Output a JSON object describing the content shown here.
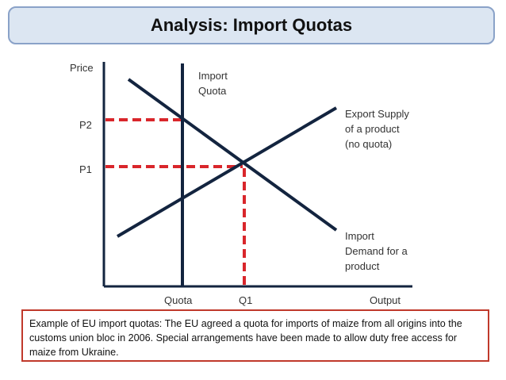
{
  "title": "Analysis: Import Quotas",
  "diagram": {
    "y_axis_label": "Price",
    "x_axis_label": "Output",
    "price_levels": [
      "P2",
      "P1"
    ],
    "quantity_levels": [
      "Quota",
      "Q1"
    ],
    "curve_labels": {
      "quota": [
        "Import",
        "Quota"
      ],
      "supply": [
        "Export Supply",
        "of a product",
        "(no quota)"
      ],
      "demand": [
        "Import",
        "Demand for a",
        "product"
      ]
    },
    "colors": {
      "curves": "#13243f",
      "dashed": "#d9262b",
      "title_bg": "#dce6f2",
      "title_border": "#8aa2c8",
      "note_border": "#c0392b"
    }
  },
  "note": "Example of EU import quotas: The EU agreed a quota for imports of maize from all origins into the customs union bloc in 2006. Special arrangements have been made to allow duty free access for maize from Ukraine."
}
